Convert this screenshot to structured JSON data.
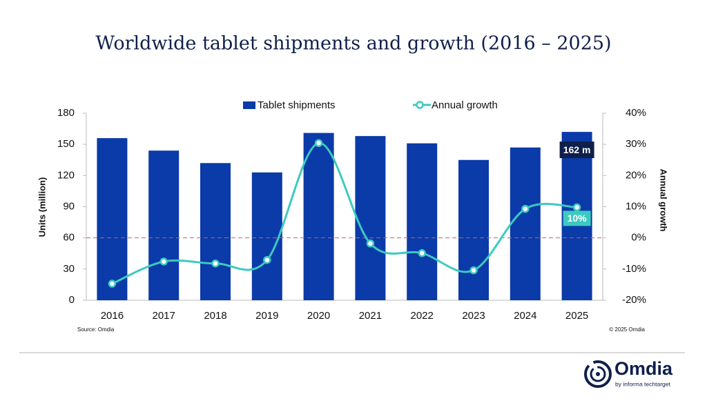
{
  "chart_data": {
    "type": "bar",
    "title": "Worldwide tablet shipments and growth (2016 – 2025)",
    "y_label": "Units (million)",
    "y2_label": "Annual growth",
    "source": "Source: Omdia",
    "copyright": "© 2025 Omdia",
    "categories": [
      "2016",
      "2017",
      "2018",
      "2019",
      "2020",
      "2021",
      "2022",
      "2023",
      "2024",
      "2025"
    ],
    "series": [
      {
        "name": "Tablet shipments",
        "type": "bar",
        "color": "#0b3aa9",
        "values": [
          156,
          144,
          132,
          123,
          161,
          158,
          151,
          135,
          147,
          162
        ],
        "value_labels": [
          null,
          null,
          null,
          null,
          null,
          null,
          null,
          null,
          null,
          "162 m"
        ]
      },
      {
        "name": "Annual growth",
        "type": "line",
        "axis": "y2",
        "color": "#3ccac0",
        "values": [
          -14.7,
          -7.6,
          -8.2,
          -7.1,
          30.4,
          -1.8,
          -4.9,
          -10.4,
          9.3,
          9.8
        ],
        "value_labels": [
          null,
          null,
          null,
          null,
          null,
          null,
          null,
          null,
          null,
          "10%"
        ]
      }
    ],
    "ylim": [
      0,
      180
    ],
    "yticks": [
      0,
      30,
      60,
      90,
      120,
      150,
      180
    ],
    "y2lim": [
      -20,
      40
    ],
    "y2ticks": [
      {
        "value": -20,
        "label": "-20%"
      },
      {
        "value": -10,
        "label": "-10%"
      },
      {
        "value": 0,
        "label": "0%"
      },
      {
        "value": 10,
        "label": "10%"
      },
      {
        "value": 20,
        "label": "20%"
      },
      {
        "value": 30,
        "label": "30%"
      },
      {
        "value": 40,
        "label": "40%"
      }
    ],
    "legend": "top"
  },
  "branding": {
    "logo": "Omdia",
    "tagline": "by informa techtarget"
  }
}
